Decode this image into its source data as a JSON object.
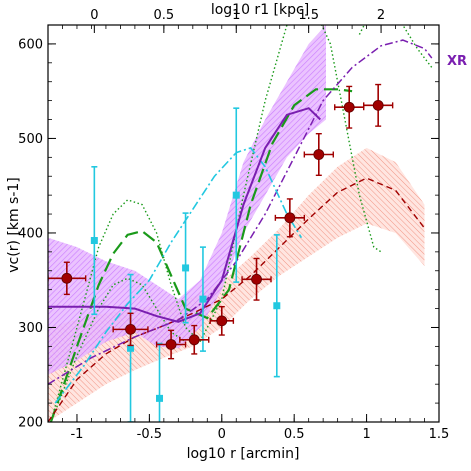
{
  "chart_data": {
    "type": "scatter",
    "xlabel": "log10 r [arcmin]",
    "ylabel": "vc(r) [km s-1]",
    "top_xlabel": "log10 r1 [kpc]",
    "xlim": [
      -1.2,
      1.5
    ],
    "ylim": [
      200,
      620
    ],
    "x_ticks": [
      -1,
      -0.5,
      0,
      0.5,
      1,
      1.5
    ],
    "x_tick_labels": [
      "-1",
      "-0.5",
      "0",
      "0.5",
      "1",
      "1.5"
    ],
    "y_ticks": [
      200,
      300,
      400,
      500,
      600
    ],
    "y_tick_labels": [
      "200",
      "300",
      "400",
      "500",
      "600"
    ],
    "top_ticks": [
      {
        "label": "0",
        "x": -0.88
      },
      {
        "label": "0.5",
        "x": -0.4
      },
      {
        "label": "1",
        "x": 0.1
      },
      {
        "label": "1.5",
        "x": 0.6
      },
      {
        "label": "2",
        "x": 1.1
      }
    ],
    "xr_label": "XR",
    "colors": {
      "red": "#a00000",
      "cyan": "#22c8e0",
      "purple": "#7a1fb0",
      "violet_band": "#cc66ff",
      "green": "#1a9a1a",
      "salmon": "#f08070"
    },
    "series": [
      {
        "kind": "red-points",
        "points": [
          {
            "x": -1.07,
            "y": 352,
            "xerr": 0.13,
            "yerr": 17
          },
          {
            "x": -0.63,
            "y": 298,
            "xerr": 0.12,
            "yerr": 17
          },
          {
            "x": -0.35,
            "y": 282,
            "xerr": 0.1,
            "yerr": 15
          },
          {
            "x": -0.19,
            "y": 287,
            "xerr": 0.1,
            "yerr": 15
          },
          {
            "x": 0.0,
            "y": 307,
            "xerr": 0.08,
            "yerr": 15
          },
          {
            "x": 0.24,
            "y": 351,
            "xerr": 0.1,
            "yerr": 22
          },
          {
            "x": 0.47,
            "y": 416,
            "xerr": 0.1,
            "yerr": 20
          },
          {
            "x": 0.67,
            "y": 483,
            "xerr": 0.1,
            "yerr": 22
          },
          {
            "x": 0.88,
            "y": 533,
            "xerr": 0.1,
            "yerr": 22
          },
          {
            "x": 1.08,
            "y": 535,
            "xerr": 0.1,
            "yerr": 22
          }
        ]
      },
      {
        "kind": "cyan-points",
        "points": [
          {
            "x": -0.88,
            "y": 392,
            "yerr": 78
          },
          {
            "x": -0.63,
            "y": 278,
            "yerr": 78
          },
          {
            "x": -0.43,
            "y": 225,
            "yerr": 58
          },
          {
            "x": -0.25,
            "y": 363,
            "yerr": 58
          },
          {
            "x": -0.13,
            "y": 330,
            "yerr": 55
          },
          {
            "x": 0.1,
            "y": 440,
            "yerr": 92
          },
          {
            "x": 0.38,
            "y": 323,
            "yerr": 75
          }
        ]
      },
      {
        "kind": "violet-band",
        "x": [
          -1.2,
          -1.0,
          -0.8,
          -0.6,
          -0.45,
          -0.3,
          -0.15,
          0.0,
          0.15,
          0.3,
          0.45,
          0.6,
          0.72
        ],
        "lower": [
          250,
          265,
          285,
          295,
          280,
          278,
          300,
          340,
          400,
          440,
          480,
          505,
          520
        ],
        "upper": [
          395,
          385,
          370,
          360,
          345,
          330,
          350,
          400,
          475,
          520,
          560,
          600,
          620
        ]
      },
      {
        "kind": "solid-purple-line",
        "x": [
          -1.2,
          -1.0,
          -0.8,
          -0.6,
          -0.45,
          -0.3,
          -0.15,
          0.0,
          0.15,
          0.3,
          0.45,
          0.6,
          0.68
        ],
        "y": [
          322,
          322,
          322,
          320,
          312,
          306,
          315,
          350,
          430,
          490,
          525,
          532,
          520
        ]
      },
      {
        "kind": "salmon-band",
        "x": [
          -1.2,
          -1.0,
          -0.8,
          -0.6,
          -0.4,
          -0.2,
          0.0,
          0.2,
          0.4,
          0.6,
          0.8,
          1.0,
          1.2,
          1.4
        ],
        "lower": [
          200,
          220,
          240,
          255,
          268,
          280,
          300,
          330,
          355,
          375,
          395,
          410,
          400,
          365
        ],
        "upper": [
          300,
          308,
          315,
          320,
          325,
          332,
          348,
          375,
          405,
          440,
          470,
          490,
          475,
          430
        ]
      },
      {
        "kind": "dashed-red-line",
        "x": [
          -1.2,
          -1.0,
          -0.8,
          -0.6,
          -0.4,
          -0.2,
          0.0,
          0.2,
          0.4,
          0.6,
          0.8,
          1.0,
          1.2,
          1.4
        ],
        "y": [
          200,
          245,
          272,
          290,
          302,
          315,
          330,
          355,
          385,
          415,
          443,
          458,
          445,
          405
        ]
      },
      {
        "kind": "dashdot-purple-line",
        "x": [
          -1.2,
          -0.9,
          -0.6,
          -0.3,
          -0.1,
          0.1,
          0.3,
          0.5,
          0.7,
          0.9,
          1.1,
          1.25,
          1.4,
          1.45
        ],
        "y": [
          240,
          268,
          290,
          308,
          330,
          370,
          420,
          480,
          540,
          575,
          598,
          604,
          595,
          585
        ]
      },
      {
        "kind": "dashed-green-line",
        "x": [
          -1.18,
          -1.0,
          -0.85,
          -0.75,
          -0.65,
          -0.55,
          -0.45,
          -0.35,
          -0.25,
          -0.1,
          0.05,
          0.2,
          0.35,
          0.5,
          0.65,
          0.8,
          0.9
        ],
        "y": [
          200,
          280,
          345,
          378,
          398,
          402,
          390,
          355,
          320,
          310,
          340,
          430,
          495,
          535,
          552,
          552,
          550
        ]
      },
      {
        "kind": "dotted-green-line",
        "x": [
          -1.18,
          -1.0,
          -0.85,
          -0.75,
          -0.65,
          -0.55,
          -0.45,
          -0.35,
          -0.25,
          -0.15,
          0.0,
          0.15,
          0.3,
          0.45,
          0.6,
          0.75,
          0.85,
          0.95,
          1.05,
          1.1
        ],
        "y": [
          200,
          300,
          385,
          420,
          435,
          430,
          400,
          345,
          300,
          285,
          330,
          440,
          540,
          620,
          650,
          600,
          520,
          440,
          385,
          380
        ]
      },
      {
        "kind": "dotted-green-lower",
        "x": [
          -1.18,
          -1.0,
          -0.85,
          -0.75,
          -0.65,
          -0.55,
          -0.45,
          -0.35,
          -0.25
        ],
        "y": [
          200,
          270,
          320,
          345,
          352,
          345,
          320,
          295,
          285
        ]
      },
      {
        "kind": "dashdot-cyan-line",
        "x": [
          -1.15,
          -0.95,
          -0.8,
          -0.65,
          -0.5,
          -0.35,
          -0.2,
          -0.05,
          0.1,
          0.2,
          0.3,
          0.45,
          0.55
        ],
        "y": [
          220,
          260,
          295,
          325,
          350,
          390,
          425,
          460,
          485,
          490,
          470,
          420,
          395
        ]
      },
      {
        "kind": "dotted-green-right",
        "x": [
          0.95,
          1.05,
          1.15,
          1.25,
          1.35,
          1.45
        ],
        "y": [
          610,
          640,
          640,
          620,
          595,
          575
        ]
      }
    ]
  }
}
